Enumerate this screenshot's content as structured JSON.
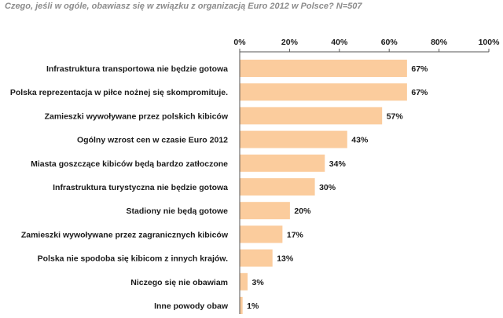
{
  "chart_data": {
    "type": "bar",
    "orientation": "horizontal",
    "title": "Czego, jeśli w ogóle, obawiasz się w związku z organizacją Euro 2012 w Polsce? N=507",
    "categories": [
      "Infrastruktura transportowa nie będzie gotowa",
      "Polska reprezentacja w piłce nożnej się skompromituje.",
      "Zamieszki wywoływane przez polskich kibiców",
      "Ogólny wzrost cen w czasie Euro 2012",
      "Miasta goszczące kibiców będą bardzo zatłoczone",
      "Infrastruktura turystyczna nie będzie gotowa",
      "Stadiony nie będą gotowe",
      "Zamieszki wywoływane przez zagranicznych kibiców",
      "Polska nie spodoba się kibicom z innych krajów.",
      "Niczego się nie obawiam",
      "Inne powody obaw"
    ],
    "values": [
      67,
      67,
      57,
      43,
      34,
      30,
      20,
      17,
      13,
      3,
      1
    ],
    "value_labels": [
      "67%",
      "67%",
      "57%",
      "43%",
      "34%",
      "30%",
      "20%",
      "17%",
      "13%",
      "3%",
      "1%"
    ],
    "xlim": [
      0,
      100
    ],
    "xticks": [
      0,
      20,
      40,
      60,
      80,
      100
    ],
    "xtick_labels": [
      "0%",
      "20%",
      "40%",
      "60%",
      "80%",
      "100%"
    ],
    "axis_position": "top",
    "grid": false,
    "legend": "none",
    "bar_color": "#fbcc9d"
  }
}
